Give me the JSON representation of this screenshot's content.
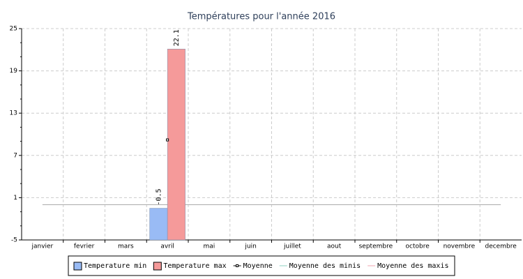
{
  "chart_data": {
    "type": "bar",
    "title": "Températures pour l'année 2016",
    "categories": [
      "janvier",
      "fevrier",
      "mars",
      "avril",
      "mai",
      "juin",
      "juillet",
      "aout",
      "septembre",
      "octobre",
      "novembre",
      "decembre"
    ],
    "series": [
      {
        "name": "Temperature min",
        "color": "#99bbf5",
        "values": [
          null,
          null,
          null,
          -0.5,
          null,
          null,
          null,
          null,
          null,
          null,
          null,
          null
        ]
      },
      {
        "name": "Temperature max",
        "color": "#f59a9a",
        "values": [
          null,
          null,
          null,
          22.1,
          null,
          null,
          null,
          null,
          null,
          null,
          null,
          null
        ]
      },
      {
        "name": "Moyenne",
        "type": "line",
        "color": "#000000",
        "values": [
          null,
          null,
          null,
          9.2,
          null,
          null,
          null,
          null,
          null,
          null,
          null,
          null
        ]
      },
      {
        "name": "Moyenne des minis",
        "type": "line",
        "color": "#8fd0c0",
        "values": [
          null,
          null,
          null,
          null,
          null,
          null,
          null,
          null,
          null,
          null,
          null,
          null
        ]
      },
      {
        "name": "Moyenne des maxis",
        "type": "line",
        "color": "#f2a6b0",
        "values": [
          null,
          null,
          null,
          null,
          null,
          null,
          null,
          null,
          null,
          null,
          null,
          null
        ]
      }
    ],
    "ylim": [
      -5,
      25
    ],
    "yticks": [
      -5,
      1,
      7,
      13,
      19,
      25
    ],
    "grid": true,
    "legend": "bottom"
  }
}
